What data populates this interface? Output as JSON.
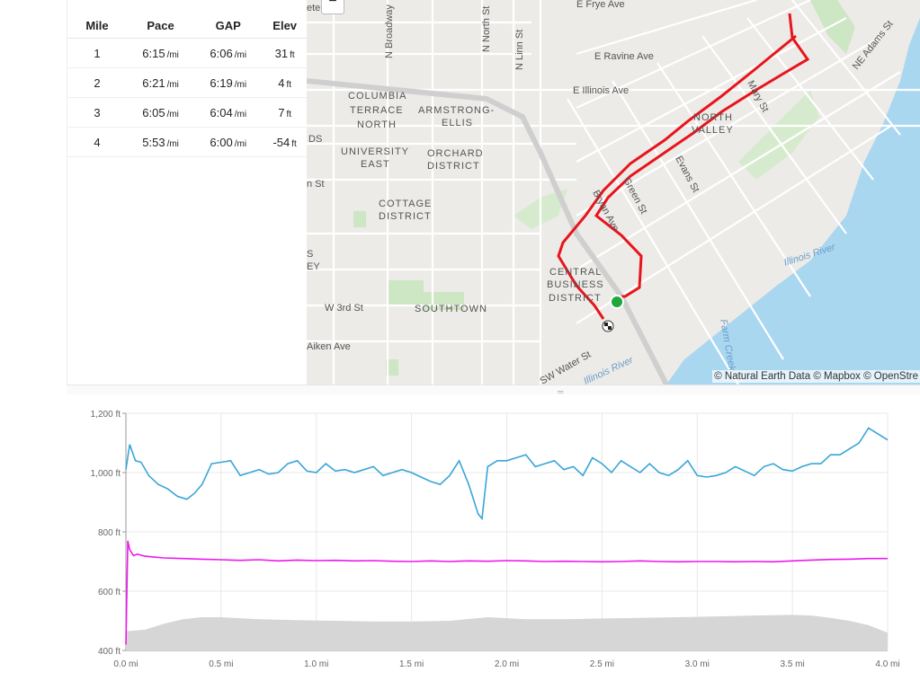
{
  "splits": {
    "headers": [
      "Mile",
      "Pace",
      "GAP",
      "Elev"
    ],
    "rows": [
      {
        "mile": "1",
        "pace": "6:15",
        "pace_unit": "/mi",
        "gap": "6:06",
        "gap_unit": "/mi",
        "elev": "31",
        "elev_unit": "ft"
      },
      {
        "mile": "2",
        "pace": "6:21",
        "pace_unit": "/mi",
        "gap": "6:19",
        "gap_unit": "/mi",
        "elev": "4",
        "elev_unit": "ft"
      },
      {
        "mile": "3",
        "pace": "6:05",
        "pace_unit": "/mi",
        "gap": "6:04",
        "gap_unit": "/mi",
        "elev": "7",
        "elev_unit": "ft"
      },
      {
        "mile": "4",
        "pace": "5:53",
        "pace_unit": "/mi",
        "gap": "6:00",
        "gap_unit": "/mi",
        "elev": "-54",
        "elev_unit": "ft"
      }
    ]
  },
  "map": {
    "zoom_out_label": "−",
    "labels": {
      "e_frye": "E Frye Ave",
      "n_broadway": "N Broadway",
      "n_north": "N North St",
      "n_linn": "N Linn St",
      "ne_adams": "NE Adams St",
      "e_ravine": "E Ravine Ave",
      "e_illinois": "E Illinois Ave",
      "columbia": "COLUMBIA",
      "terrace": "TERRACE",
      "north": "NORTH",
      "armstrong": "ARMSTRONG-",
      "ellis": "ELLIS",
      "university": "UNIVERSITY",
      "east": "EAST",
      "orchard": "ORCHARD",
      "district1": "DISTRICT",
      "cottage": "COTTAGE",
      "district2": "DISTRICT",
      "north2": "NORTH",
      "valley": "VALLEY",
      "mary": "Mary St",
      "evans": "Evans St",
      "green": "Green St",
      "bryan": "Bryan Ave",
      "central": "CENTRAL",
      "business": "BUSINESS",
      "district3": "DISTRICT",
      "illinois_river": "Illinois River",
      "illinois_river2": "Illinois River",
      "farm_creek": "Farm Creek",
      "w3rd": "W 3rd St",
      "southtown": "SOUTHTOWN",
      "aiken": "Aiken Ave",
      "sw_water": "SW Water St",
      "ds": "DS",
      "nst": "n St",
      "s": "S",
      "ey": "EY",
      "ete": "ete"
    },
    "attribution": "© Natural Earth Data © Mapbox © OpenStre",
    "route_color": "#e8141b",
    "start_color": "#1fa83a"
  },
  "chart_data": {
    "type": "line",
    "x_unit": "mi",
    "xlim": [
      0,
      4
    ],
    "ylim": [
      400,
      1200
    ],
    "x_ticks": [
      "0.0 mi",
      "0.5 mi",
      "1.0 mi",
      "1.5 mi",
      "2.0 mi",
      "2.5 mi",
      "3.0 mi",
      "3.5 mi",
      "4.0 mi"
    ],
    "y_ticks": [
      "400 ft",
      "600 ft",
      "800 ft",
      "1,000 ft",
      "1,200 ft"
    ],
    "grid": true,
    "series": [
      {
        "color": "#38a6d8",
        "kind": "line",
        "x": [
          0.0,
          0.02,
          0.05,
          0.08,
          0.12,
          0.17,
          0.22,
          0.27,
          0.32,
          0.36,
          0.4,
          0.45,
          0.5,
          0.55,
          0.6,
          0.65,
          0.7,
          0.75,
          0.8,
          0.85,
          0.9,
          0.95,
          1.0,
          1.05,
          1.1,
          1.15,
          1.2,
          1.25,
          1.3,
          1.35,
          1.4,
          1.45,
          1.5,
          1.55,
          1.6,
          1.65,
          1.7,
          1.75,
          1.8,
          1.83,
          1.85,
          1.87,
          1.9,
          1.95,
          2.0,
          2.05,
          2.1,
          2.15,
          2.2,
          2.25,
          2.3,
          2.35,
          2.4,
          2.45,
          2.5,
          2.55,
          2.6,
          2.65,
          2.7,
          2.75,
          2.8,
          2.85,
          2.9,
          2.95,
          3.0,
          3.05,
          3.1,
          3.15,
          3.2,
          3.25,
          3.3,
          3.35,
          3.4,
          3.45,
          3.5,
          3.55,
          3.6,
          3.65,
          3.7,
          3.75,
          3.8,
          3.85,
          3.9,
          3.95,
          4.0
        ],
        "y": [
          1010,
          1095,
          1040,
          1035,
          990,
          960,
          945,
          920,
          910,
          930,
          960,
          1030,
          1035,
          1040,
          990,
          1000,
          1010,
          995,
          1000,
          1030,
          1040,
          1005,
          1000,
          1030,
          1005,
          1010,
          1000,
          1010,
          1020,
          990,
          1000,
          1010,
          1000,
          985,
          970,
          960,
          990,
          1040,
          960,
          900,
          860,
          845,
          1020,
          1040,
          1040,
          1050,
          1060,
          1020,
          1030,
          1040,
          1010,
          1020,
          990,
          1050,
          1030,
          1000,
          1040,
          1020,
          1000,
          1030,
          1000,
          990,
          1010,
          1040,
          990,
          985,
          990,
          1000,
          1020,
          1005,
          990,
          1020,
          1030,
          1010,
          1005,
          1020,
          1030,
          1030,
          1060,
          1060,
          1080,
          1100,
          1150,
          1130,
          1110
        ]
      },
      {
        "color": "#ee18ee",
        "kind": "line",
        "x": [
          0.0,
          0.01,
          0.02,
          0.04,
          0.06,
          0.1,
          0.15,
          0.2,
          0.3,
          0.4,
          0.5,
          0.6,
          0.7,
          0.8,
          0.9,
          1.0,
          1.1,
          1.2,
          1.3,
          1.4,
          1.5,
          1.6,
          1.7,
          1.8,
          1.9,
          2.0,
          2.1,
          2.2,
          2.3,
          2.4,
          2.5,
          2.6,
          2.7,
          2.8,
          2.9,
          3.0,
          3.1,
          3.2,
          3.3,
          3.4,
          3.5,
          3.6,
          3.7,
          3.8,
          3.9,
          4.0
        ],
        "y": [
          420,
          770,
          740,
          720,
          725,
          718,
          715,
          712,
          710,
          708,
          706,
          704,
          706,
          702,
          705,
          703,
          704,
          702,
          703,
          701,
          700,
          702,
          700,
          702,
          701,
          703,
          702,
          700,
          701,
          700,
          699,
          700,
          702,
          700,
          699,
          700,
          700,
          699,
          700,
          699,
          702,
          705,
          707,
          708,
          710,
          710
        ]
      },
      {
        "color": "#d6d6d6",
        "kind": "area",
        "x": [
          0.0,
          0.1,
          0.2,
          0.3,
          0.4,
          0.5,
          0.7,
          0.9,
          1.1,
          1.3,
          1.5,
          1.7,
          1.9,
          2.1,
          2.3,
          2.5,
          2.7,
          2.9,
          3.1,
          3.3,
          3.5,
          3.6,
          3.7,
          3.8,
          3.9,
          4.0
        ],
        "y": [
          465,
          470,
          490,
          505,
          512,
          512,
          505,
          502,
          500,
          498,
          498,
          500,
          512,
          505,
          505,
          508,
          510,
          512,
          515,
          518,
          520,
          518,
          510,
          500,
          485,
          460
        ]
      }
    ]
  }
}
